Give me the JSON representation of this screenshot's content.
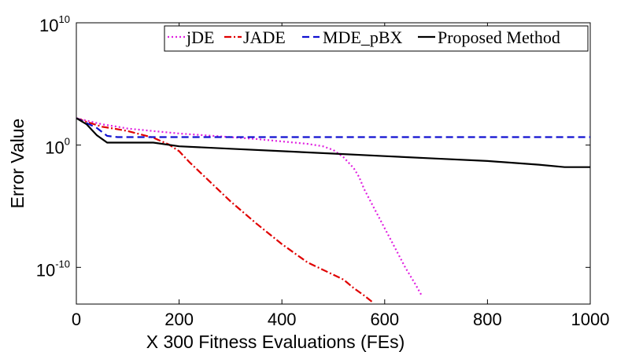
{
  "chart_data": {
    "type": "line",
    "xlabel": "X 300 Fitness Evaluations (FEs)",
    "ylabel": "Error Value",
    "xlim": [
      0,
      1000
    ],
    "ylim_log10": [
      -13,
      10
    ],
    "yscale": "log",
    "grid": false,
    "legend": "top-right",
    "x_ticks": [
      "0",
      "200",
      "400",
      "600",
      "800",
      "1000"
    ],
    "x_tick_values": [
      0,
      200,
      400,
      600,
      800,
      1000
    ],
    "y_ticks": [
      {
        "value_log10": 10,
        "base": "10",
        "exp": "10"
      },
      {
        "value_log10": 0,
        "base": "10",
        "exp": "0"
      },
      {
        "value_log10": -10,
        "base": "10",
        "exp": "-10"
      }
    ],
    "series": [
      {
        "name": "jDE",
        "color": "#e020e0",
        "dash": "2,3",
        "x": [
          0,
          20,
          50,
          80,
          100,
          150,
          200,
          250,
          300,
          350,
          400,
          450,
          480,
          500,
          520,
          540,
          550,
          560,
          580,
          600,
          620,
          640,
          660,
          672
        ],
        "y_log10": [
          2.2,
          2.0,
          1.7,
          1.5,
          1.35,
          1.15,
          0.95,
          0.8,
          0.65,
          0.5,
          0.3,
          0.1,
          -0.1,
          -0.4,
          -1.0,
          -1.9,
          -2.6,
          -3.6,
          -5.2,
          -6.8,
          -8.4,
          -10.0,
          -11.4,
          -12.3
        ]
      },
      {
        "name": "JADE",
        "color": "#e00000",
        "dash": "9,3,2,3",
        "x": [
          0,
          20,
          50,
          80,
          100,
          150,
          180,
          200,
          220,
          250,
          300,
          350,
          400,
          450,
          500,
          520,
          540,
          560,
          575
        ],
        "y_log10": [
          2.2,
          1.9,
          1.5,
          1.3,
          1.15,
          0.6,
          0.05,
          -0.5,
          -1.4,
          -2.6,
          -4.6,
          -6.4,
          -8.1,
          -9.6,
          -10.6,
          -11.0,
          -11.7,
          -12.3,
          -12.8
        ]
      },
      {
        "name": "MDE_pBX",
        "color": "#1010d0",
        "dash": "9,5",
        "x": [
          0,
          20,
          40,
          60,
          80,
          100,
          200,
          400,
          600,
          800,
          1000
        ],
        "y_log10": [
          2.2,
          1.8,
          1.4,
          0.75,
          0.65,
          0.65,
          0.65,
          0.65,
          0.65,
          0.65,
          0.65
        ]
      },
      {
        "name": "Proposed Method",
        "color": "#000000",
        "dash": "",
        "x": [
          0,
          20,
          40,
          60,
          80,
          100,
          150,
          200,
          300,
          400,
          500,
          600,
          700,
          800,
          900,
          950,
          1000
        ],
        "y_log10": [
          2.2,
          1.7,
          0.8,
          0.2,
          0.2,
          0.2,
          0.2,
          -0.1,
          -0.3,
          -0.5,
          -0.7,
          -0.9,
          -1.1,
          -1.3,
          -1.6,
          -1.8,
          -1.8
        ]
      }
    ]
  }
}
